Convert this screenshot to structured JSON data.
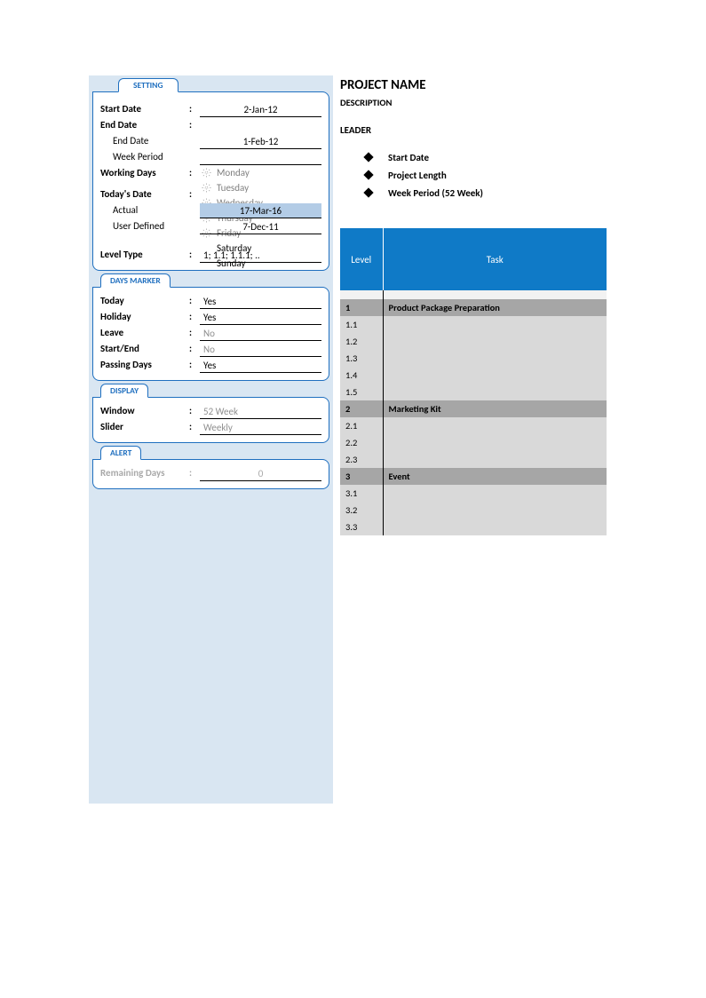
{
  "colors": {
    "panel_bg": "#d9e6f2",
    "border_blue": "#1f6fbf",
    "header_blue": "#0f7ac7",
    "highlight": "#b3cce6",
    "group_gray": "#a6a6a6",
    "sub_gray": "#d9d9d9",
    "disabled_text": "#a9a9a9"
  },
  "tabs": {
    "setting": "SETTING",
    "days_marker": "DAYS MARKER",
    "display": "DISPLAY",
    "alert": "ALERT"
  },
  "setting": {
    "start_date_label": "Start Date",
    "start_date_value": "2-Jan-12",
    "end_date_label": "End Date",
    "end_date_sub_label": "End Date",
    "end_date_value": "1-Feb-12",
    "week_period_label": "Week Period",
    "week_period_value": "",
    "working_days_label": "Working Days",
    "days": [
      {
        "name": "Monday",
        "icon": true,
        "enabled": false
      },
      {
        "name": "Tuesday",
        "icon": true,
        "enabled": false
      },
      {
        "name": "Wednesday",
        "icon": true,
        "enabled": false
      },
      {
        "name": "Thursday",
        "icon": true,
        "enabled": false
      },
      {
        "name": "Friday",
        "icon": true,
        "enabled": false
      },
      {
        "name": "Saturday",
        "icon": false,
        "enabled": true
      },
      {
        "name": "Sunday",
        "icon": false,
        "enabled": true
      }
    ],
    "todays_date_label": "Today's Date",
    "actual_label": "Actual",
    "actual_value": "17-Mar-16",
    "user_defined_label": "User Defined",
    "user_defined_value": "7-Dec-11",
    "level_type_label": "Level Type",
    "level_type_value": "1; 1.1; 1.1.1; .."
  },
  "days_marker": {
    "today_label": "Today",
    "today_value": "Yes",
    "holiday_label": "Holiday",
    "holiday_value": "Yes",
    "leave_label": "Leave",
    "leave_value": "No",
    "startend_label": "Start/End",
    "startend_value": "No",
    "passing_label": "Passing Days",
    "passing_value": "Yes"
  },
  "display": {
    "window_label": "Window",
    "window_value": "52 Week",
    "slider_label": "Slider",
    "slider_value": "Weekly"
  },
  "alert": {
    "remaining_label": "Remaining Days",
    "remaining_value": "0"
  },
  "project": {
    "title": "PROJECT NAME",
    "description": "DESCRIPTION",
    "leader": "LEADER",
    "bullets": [
      "Start Date",
      "Project Length",
      "Week Period (52 Week)"
    ]
  },
  "table": {
    "headers": {
      "level": "Level",
      "task": "Task"
    },
    "rows": [
      {
        "type": "spacer"
      },
      {
        "type": "group",
        "level": "1",
        "task": "Product Package Preparation"
      },
      {
        "type": "sub",
        "level": "1.1",
        "task": ""
      },
      {
        "type": "sub",
        "level": "1.2",
        "task": ""
      },
      {
        "type": "sub",
        "level": "1.3",
        "task": ""
      },
      {
        "type": "sub",
        "level": "1.4",
        "task": ""
      },
      {
        "type": "sub",
        "level": "1.5",
        "task": ""
      },
      {
        "type": "group",
        "level": "2",
        "task": "Marketing Kit"
      },
      {
        "type": "sub",
        "level": "2.1",
        "task": ""
      },
      {
        "type": "sub",
        "level": "2.2",
        "task": ""
      },
      {
        "type": "sub",
        "level": "2.3",
        "task": ""
      },
      {
        "type": "group",
        "level": "3",
        "task": "Event"
      },
      {
        "type": "sub",
        "level": "3.1",
        "task": ""
      },
      {
        "type": "sub",
        "level": "3.2",
        "task": ""
      },
      {
        "type": "sub",
        "level": "3.3",
        "task": ""
      }
    ]
  }
}
